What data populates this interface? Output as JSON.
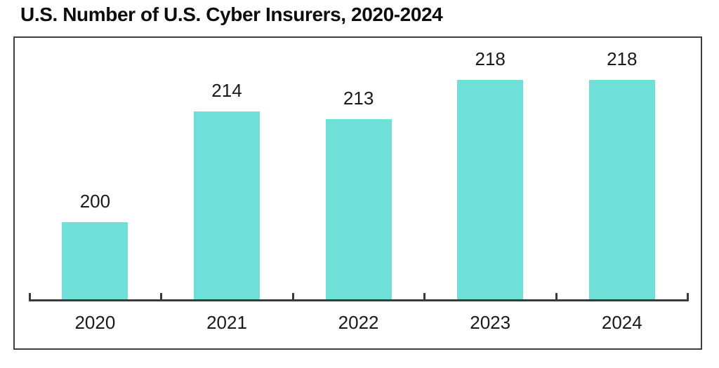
{
  "page": {
    "title": "U.S. Number of U.S. Cyber Insurers, 2020-2024"
  },
  "chart_data": {
    "type": "bar",
    "title": "U.S. Number of U.S. Cyber Insurers, 2020-2024",
    "categories": [
      "2020",
      "2021",
      "2022",
      "2023",
      "2024"
    ],
    "values": [
      200,
      214,
      213,
      218,
      218
    ],
    "xlabel": "",
    "ylabel": "",
    "ylim": [
      190,
      223.5
    ],
    "grid": false,
    "legend": false,
    "data_labels": true,
    "colors": {
      "bar_fill": "#6FE0D8",
      "axis": "#3A3A3A",
      "frame_border": "#3F3F3F",
      "text": "#1A1A1A"
    }
  }
}
